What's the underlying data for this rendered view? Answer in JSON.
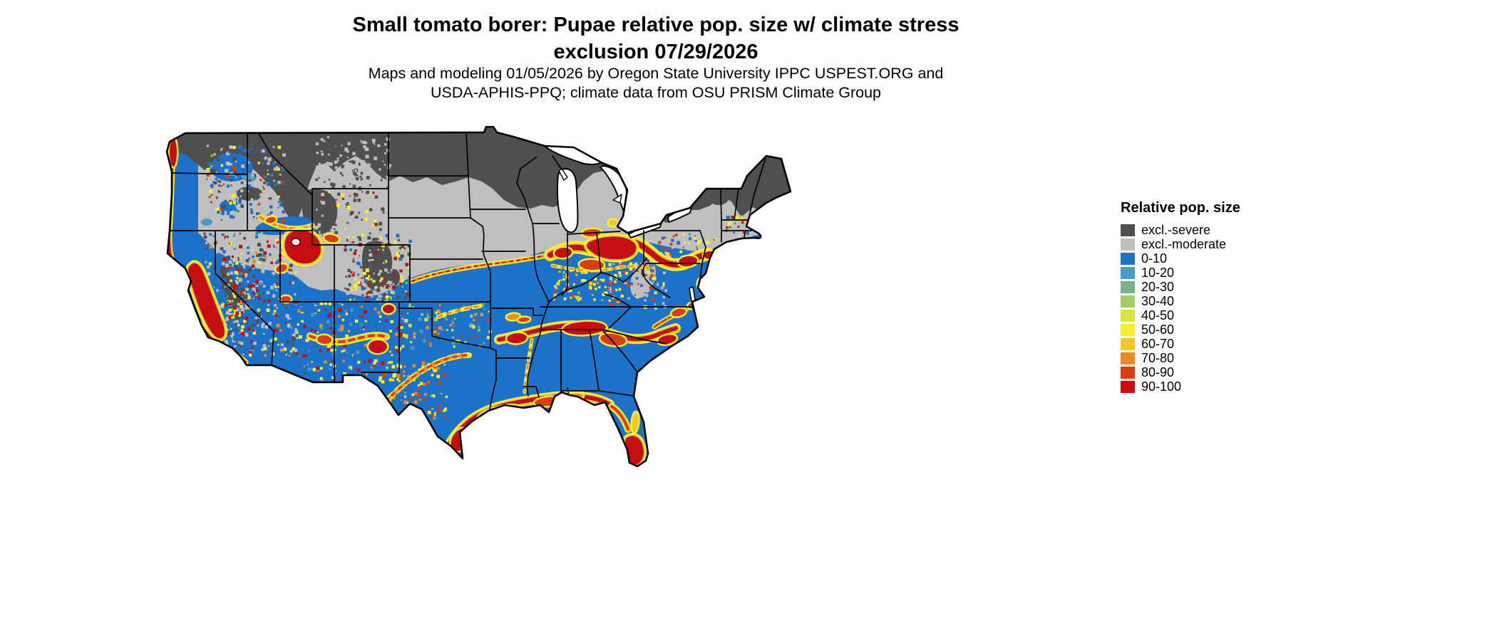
{
  "header": {
    "title_line1": "Small tomato borer: Pupae relative pop. size w/ climate stress",
    "title_line2": "exclusion 07/29/2026",
    "credit_line1": "Maps and modeling 01/05/2026 by Oregon State University IPPC USPEST.ORG and",
    "credit_line2": "USDA-APHIS-PPQ; climate data from OSU PRISM Climate Group"
  },
  "legend": {
    "title": "Relative pop. size",
    "items": [
      {
        "key": "sev",
        "label": "excl.-severe",
        "color": "#4f4f4f"
      },
      {
        "key": "mod",
        "label": "excl.-moderate",
        "color": "#bfbfbf"
      },
      {
        "key": "b0",
        "label": "0-10",
        "color": "#1b72c8"
      },
      {
        "key": "b10",
        "label": "10-20",
        "color": "#4a9ac2"
      },
      {
        "key": "g20",
        "label": "20-30",
        "color": "#79b287"
      },
      {
        "key": "g30",
        "label": "30-40",
        "color": "#a3cc67"
      },
      {
        "key": "y40",
        "label": "40-50",
        "color": "#d9e53e"
      },
      {
        "key": "y50",
        "label": "50-60",
        "color": "#f7ef2e"
      },
      {
        "key": "o60",
        "label": "60-70",
        "color": "#f3c62a"
      },
      {
        "key": "o70",
        "label": "70-80",
        "color": "#ee8a20"
      },
      {
        "key": "r80",
        "label": "80-90",
        "color": "#dd3b14"
      },
      {
        "key": "r90",
        "label": "90-100",
        "color": "#c60d12"
      }
    ]
  },
  "map": {
    "outline_color": "#000000",
    "water_color": "#ffffff",
    "background": "#ffffff"
  }
}
